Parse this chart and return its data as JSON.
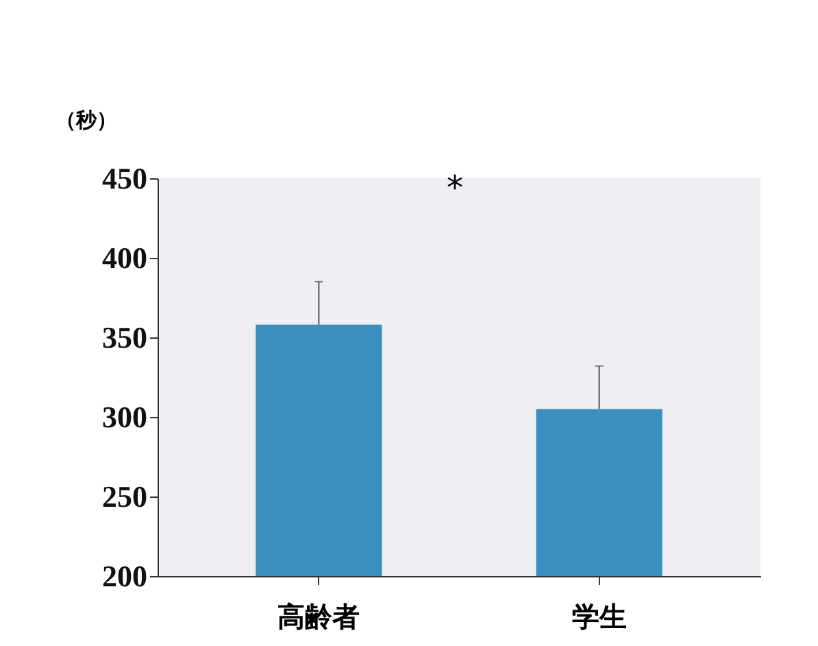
{
  "chart_data": {
    "type": "bar",
    "ylabel": "（秒）",
    "categories": [
      "高齢者",
      "学生"
    ],
    "values": [
      358,
      305
    ],
    "errors": [
      27,
      27
    ],
    "color": "#3a8fc0",
    "ylim": [
      200,
      450
    ],
    "yticks": [
      200,
      250,
      300,
      350,
      400,
      450
    ],
    "grid": false,
    "annotations": [
      "*"
    ]
  }
}
